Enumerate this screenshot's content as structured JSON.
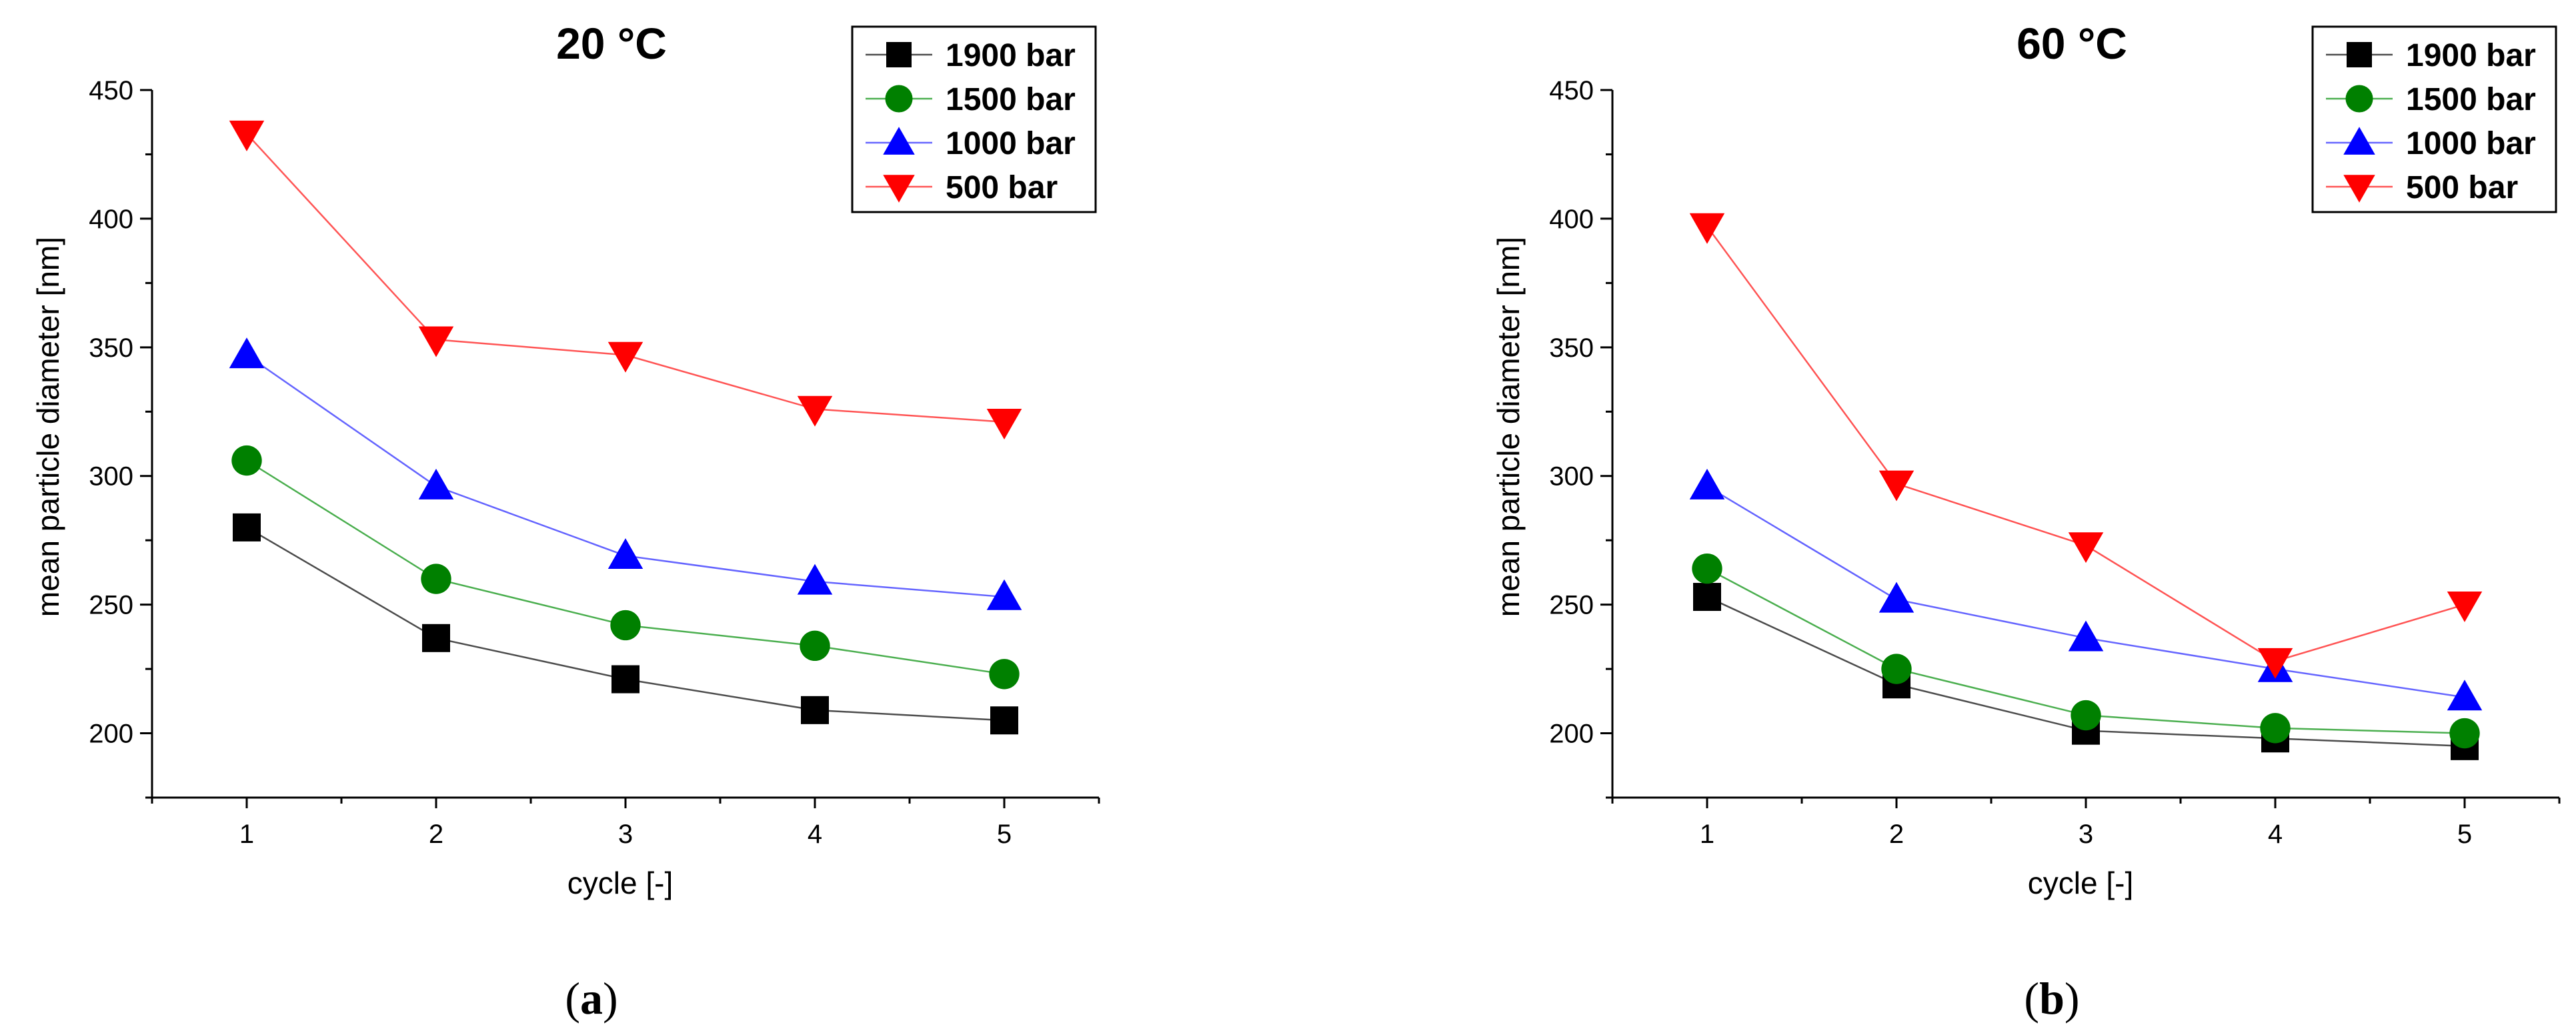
{
  "chart_data": [
    {
      "type": "line",
      "panel_label": "(a)",
      "panel_letter": "a",
      "title": "20 °C",
      "xlabel": "cycle [-]",
      "ylabel": "mean particle diameter [nm]",
      "x": [
        1,
        2,
        3,
        4,
        5
      ],
      "xlim": [
        0.5,
        5.5
      ],
      "ylim": [
        175,
        450
      ],
      "xticks": [
        "1",
        "2",
        "3",
        "4",
        "5"
      ],
      "yticks": [
        "200",
        "250",
        "300",
        "350",
        "400",
        "450"
      ],
      "legend_position": "top-right",
      "series": [
        {
          "name": "1900 bar",
          "color": "#000000",
          "line_color": "#4d4d4d",
          "marker": "square",
          "values": [
            280,
            237,
            221,
            209,
            205
          ]
        },
        {
          "name": "1500 bar",
          "color": "#008000",
          "line_color": "#4caf50",
          "marker": "circle",
          "values": [
            306,
            260,
            242,
            234,
            223
          ]
        },
        {
          "name": "1000 bar",
          "color": "#0000ff",
          "line_color": "#6666ff",
          "marker": "triangle-up",
          "values": [
            347,
            296,
            269,
            259,
            253
          ]
        },
        {
          "name": "500 bar",
          "color": "#ff0000",
          "line_color": "#ff5555",
          "marker": "triangle-down",
          "values": [
            433,
            353,
            347,
            326,
            321
          ]
        }
      ]
    },
    {
      "type": "line",
      "panel_label": "(b)",
      "panel_letter": "b",
      "title": "60 °C",
      "xlabel": "cycle [-]",
      "ylabel": "mean particle diameter [nm]",
      "x": [
        1,
        2,
        3,
        4,
        5
      ],
      "xlim": [
        0.5,
        5.5
      ],
      "ylim": [
        175,
        450
      ],
      "xticks": [
        "1",
        "2",
        "3",
        "4",
        "5"
      ],
      "yticks": [
        "200",
        "250",
        "300",
        "350",
        "400",
        "450"
      ],
      "legend_position": "top-right",
      "series": [
        {
          "name": "1900 bar",
          "color": "#000000",
          "line_color": "#4d4d4d",
          "marker": "square",
          "values": [
            253,
            219,
            201,
            198,
            195
          ]
        },
        {
          "name": "1500 bar",
          "color": "#008000",
          "line_color": "#4caf50",
          "marker": "circle",
          "values": [
            264,
            225,
            207,
            202,
            200
          ]
        },
        {
          "name": "1000 bar",
          "color": "#0000ff",
          "line_color": "#6666ff",
          "marker": "triangle-up",
          "values": [
            296,
            252,
            237,
            225,
            214
          ]
        },
        {
          "name": "500 bar",
          "color": "#ff0000",
          "line_color": "#ff5555",
          "marker": "triangle-down",
          "values": [
            397,
            297,
            273,
            228,
            250
          ]
        }
      ]
    }
  ]
}
